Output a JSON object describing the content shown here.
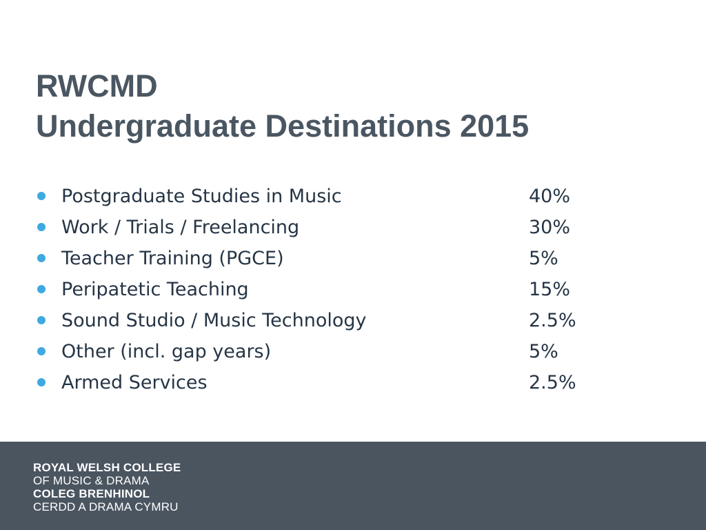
{
  "slide": {
    "title_line1": "RWCMD",
    "title_line2": "Undergraduate Destinations 2015",
    "bullet_color": "#3fa9e0",
    "items": [
      {
        "label": "Postgraduate Studies in Music",
        "value": "40%"
      },
      {
        "label": "Work / Trials / Freelancing",
        "value": "30%"
      },
      {
        "label": "Teacher Training (PGCE)",
        "value": "5%"
      },
      {
        "label": "Peripatetic Teaching",
        "value": "15%"
      },
      {
        "label": "Sound Studio / Music Technology",
        "value": "2.5%"
      },
      {
        "label": "Other (incl. gap years)",
        "value": "5%"
      },
      {
        "label": "Armed Services",
        "value": "2.5%"
      }
    ]
  },
  "footer": {
    "background_color": "#4a5560",
    "logo_lines": [
      "ROYAL WELSH COLLEGE",
      "OF MUSIC & DRAMA",
      "COLEG BRENHINOL",
      "CERDD A DRAMA CYMRU"
    ]
  }
}
